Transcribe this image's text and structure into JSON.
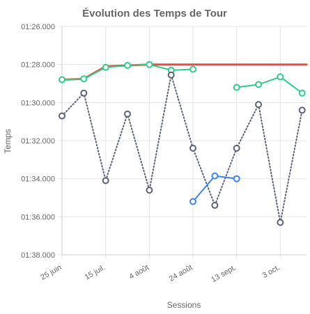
{
  "chart_data": {
    "type": "line",
    "title": "Évolution des Temps de Tour",
    "xlabel": "Sessions",
    "ylabel": "Temps",
    "y_reversed": true,
    "ylim": [
      86,
      98
    ],
    "y_ticks": [
      86,
      88,
      90,
      92,
      94,
      96,
      98
    ],
    "y_tick_labels": [
      "01:26.000",
      "01:28.000",
      "01:30.000",
      "01:32.000",
      "01:34.000",
      "01:36.000",
      "01:38.000"
    ],
    "x_ticks": [
      0,
      20,
      40,
      60,
      80,
      100
    ],
    "x_tick_labels": [
      "25 juin",
      "15 juil.",
      "4 août",
      "24 août",
      "13 sept.",
      "3 oct."
    ],
    "xlim": [
      0,
      112
    ],
    "grid": true,
    "series": [
      {
        "color": "#e74c3c",
        "style": "solid",
        "markers": false,
        "points": [
          [
            0,
            88.8
          ],
          [
            10,
            88.75
          ],
          [
            20,
            88.1
          ],
          [
            30,
            88.05
          ],
          [
            40,
            88.0
          ],
          [
            50,
            88.0
          ],
          [
            60,
            88.0
          ],
          [
            70,
            88.0
          ],
          [
            80,
            88.0
          ],
          [
            90,
            88.0
          ],
          [
            100,
            88.0
          ],
          [
            110,
            88.0
          ],
          [
            112,
            88.0
          ]
        ]
      },
      {
        "color": "#2ecc8a",
        "style": "solid",
        "markers": true,
        "points": [
          [
            0,
            88.8
          ],
          [
            10,
            88.75
          ],
          [
            20,
            88.15
          ],
          [
            30,
            88.05
          ],
          [
            40,
            88.0
          ],
          [
            50,
            88.3
          ],
          [
            60,
            88.25
          ]
        ]
      },
      {
        "color": "#2ecc8a",
        "style": "solid",
        "markers": true,
        "points": [
          [
            80,
            89.2
          ],
          [
            90,
            89.05
          ],
          [
            100,
            88.65
          ],
          [
            110,
            89.5
          ]
        ]
      },
      {
        "color": "#5b6275",
        "style": "dotted",
        "markers": true,
        "points": [
          [
            0,
            90.7
          ],
          [
            10,
            89.5
          ],
          [
            20,
            94.1
          ],
          [
            30,
            90.6
          ],
          [
            40,
            94.6
          ],
          [
            50,
            88.55
          ],
          [
            60,
            92.4
          ],
          [
            70,
            95.4
          ],
          [
            80,
            92.4
          ],
          [
            90,
            90.1
          ],
          [
            100,
            96.3
          ],
          [
            110,
            90.4
          ]
        ]
      },
      {
        "color": "#3b82f6",
        "style": "solid",
        "markers": true,
        "points": [
          [
            60,
            95.2
          ],
          [
            70,
            93.85
          ],
          [
            80,
            94.0
          ]
        ]
      }
    ]
  }
}
